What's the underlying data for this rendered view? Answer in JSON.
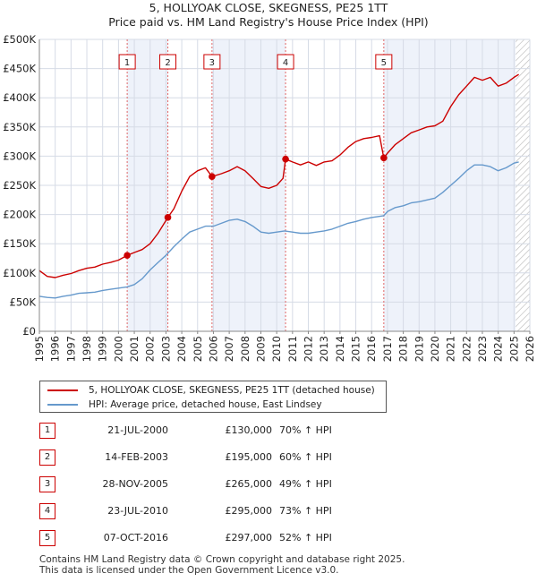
{
  "title": "5, HOLLYOAK CLOSE, SKEGNESS, PE25 1TT",
  "subtitle": "Price paid vs. HM Land Registry's House Price Index (HPI)",
  "legend": {
    "property": "5, HOLLYOAK CLOSE, SKEGNESS, PE25 1TT (detached house)",
    "hpi": "HPI: Average price, detached house, East Lindsey"
  },
  "sales": [
    {
      "num": "1",
      "date": "21-JUL-2000",
      "price": "£130,000",
      "hpi": "70% ↑ HPI"
    },
    {
      "num": "2",
      "date": "14-FEB-2003",
      "price": "£195,000",
      "hpi": "60% ↑ HPI"
    },
    {
      "num": "3",
      "date": "28-NOV-2005",
      "price": "£265,000",
      "hpi": "49% ↑ HPI"
    },
    {
      "num": "4",
      "date": "23-JUL-2010",
      "price": "£295,000",
      "hpi": "73% ↑ HPI"
    },
    {
      "num": "5",
      "date": "07-OCT-2016",
      "price": "£297,000",
      "hpi": "52% ↑ HPI"
    }
  ],
  "footer": {
    "line1": "Contains HM Land Registry data © Crown copyright and database right 2025.",
    "line2": "This data is licensed under the Open Government Licence v3.0."
  },
  "chart_data": {
    "type": "line",
    "xlim": [
      1995,
      2026
    ],
    "ylim": [
      0,
      500000
    ],
    "x_ticks": [
      "1995",
      "1996",
      "1997",
      "1998",
      "1999",
      "2000",
      "2001",
      "2002",
      "2003",
      "2004",
      "2005",
      "2006",
      "2007",
      "2008",
      "2009",
      "2010",
      "2011",
      "2012",
      "2013",
      "2014",
      "2015",
      "2016",
      "2017",
      "2018",
      "2019",
      "2020",
      "2021",
      "2022",
      "2023",
      "2024",
      "2025",
      "2026"
    ],
    "y_ticks": [
      {
        "value": 0,
        "label": "£0"
      },
      {
        "value": 50000,
        "label": "£50K"
      },
      {
        "value": 100000,
        "label": "£100K"
      },
      {
        "value": 150000,
        "label": "£150K"
      },
      {
        "value": 200000,
        "label": "£200K"
      },
      {
        "value": 250000,
        "label": "£250K"
      },
      {
        "value": 300000,
        "label": "£300K"
      },
      {
        "value": 350000,
        "label": "£350K"
      },
      {
        "value": 400000,
        "label": "£400K"
      },
      {
        "value": 450000,
        "label": "£450K"
      },
      {
        "value": 500000,
        "label": "£500K"
      }
    ],
    "sale_points": [
      {
        "label": "1",
        "x": 2000.55,
        "y": 130000
      },
      {
        "label": "2",
        "x": 2003.12,
        "y": 195000
      },
      {
        "label": "3",
        "x": 2005.91,
        "y": 265000
      },
      {
        "label": "4",
        "x": 2010.56,
        "y": 295000
      },
      {
        "label": "5",
        "x": 2016.77,
        "y": 297000
      }
    ],
    "series": [
      {
        "name": "5, HOLLYOAK CLOSE, SKEGNESS, PE25 1TT (detached house)",
        "color": "#cc0000",
        "points": [
          [
            1995.0,
            104000
          ],
          [
            1995.5,
            94000
          ],
          [
            1996.0,
            92000
          ],
          [
            1996.5,
            96000
          ],
          [
            1997.0,
            99000
          ],
          [
            1997.5,
            104000
          ],
          [
            1998.0,
            108000
          ],
          [
            1998.5,
            110000
          ],
          [
            1999.0,
            115000
          ],
          [
            1999.5,
            118000
          ],
          [
            2000.0,
            122000
          ],
          [
            2000.55,
            130000
          ],
          [
            2001.0,
            135000
          ],
          [
            2001.5,
            140000
          ],
          [
            2002.0,
            150000
          ],
          [
            2002.5,
            168000
          ],
          [
            2003.12,
            195000
          ],
          [
            2003.5,
            210000
          ],
          [
            2004.0,
            240000
          ],
          [
            2004.5,
            265000
          ],
          [
            2005.0,
            275000
          ],
          [
            2005.5,
            280000
          ],
          [
            2005.91,
            265000
          ],
          [
            2006.5,
            270000
          ],
          [
            2007.0,
            275000
          ],
          [
            2007.5,
            282000
          ],
          [
            2008.0,
            275000
          ],
          [
            2008.5,
            262000
          ],
          [
            2009.0,
            248000
          ],
          [
            2009.5,
            245000
          ],
          [
            2010.0,
            250000
          ],
          [
            2010.4,
            262000
          ],
          [
            2010.56,
            295000
          ],
          [
            2011.0,
            290000
          ],
          [
            2011.5,
            285000
          ],
          [
            2012.0,
            290000
          ],
          [
            2012.5,
            284000
          ],
          [
            2013.0,
            290000
          ],
          [
            2013.5,
            292000
          ],
          [
            2014.0,
            302000
          ],
          [
            2014.5,
            315000
          ],
          [
            2015.0,
            325000
          ],
          [
            2015.5,
            330000
          ],
          [
            2016.0,
            332000
          ],
          [
            2016.5,
            335000
          ],
          [
            2016.77,
            297000
          ],
          [
            2017.0,
            305000
          ],
          [
            2017.5,
            320000
          ],
          [
            2018.0,
            330000
          ],
          [
            2018.5,
            340000
          ],
          [
            2019.0,
            345000
          ],
          [
            2019.5,
            350000
          ],
          [
            2020.0,
            352000
          ],
          [
            2020.5,
            360000
          ],
          [
            2021.0,
            385000
          ],
          [
            2021.5,
            405000
          ],
          [
            2022.0,
            420000
          ],
          [
            2022.5,
            435000
          ],
          [
            2023.0,
            430000
          ],
          [
            2023.5,
            435000
          ],
          [
            2024.0,
            420000
          ],
          [
            2024.5,
            425000
          ],
          [
            2025.0,
            435000
          ],
          [
            2025.3,
            440000
          ]
        ]
      },
      {
        "name": "HPI: Average price, detached house, East Lindsey",
        "color": "#6699cc",
        "points": [
          [
            1995.0,
            60000
          ],
          [
            1995.5,
            58000
          ],
          [
            1996.0,
            57000
          ],
          [
            1996.5,
            60000
          ],
          [
            1997.0,
            62000
          ],
          [
            1997.5,
            65000
          ],
          [
            1998.0,
            66000
          ],
          [
            1998.5,
            67000
          ],
          [
            1999.0,
            70000
          ],
          [
            1999.5,
            72000
          ],
          [
            2000.0,
            74000
          ],
          [
            2000.55,
            76000
          ],
          [
            2001.0,
            80000
          ],
          [
            2001.5,
            90000
          ],
          [
            2002.0,
            105000
          ],
          [
            2002.5,
            118000
          ],
          [
            2003.0,
            130000
          ],
          [
            2003.5,
            145000
          ],
          [
            2004.0,
            158000
          ],
          [
            2004.5,
            170000
          ],
          [
            2005.0,
            175000
          ],
          [
            2005.5,
            180000
          ],
          [
            2006.0,
            180000
          ],
          [
            2006.5,
            185000
          ],
          [
            2007.0,
            190000
          ],
          [
            2007.5,
            192000
          ],
          [
            2008.0,
            188000
          ],
          [
            2008.5,
            180000
          ],
          [
            2009.0,
            170000
          ],
          [
            2009.5,
            168000
          ],
          [
            2010.0,
            170000
          ],
          [
            2010.5,
            172000
          ],
          [
            2011.0,
            170000
          ],
          [
            2011.5,
            168000
          ],
          [
            2012.0,
            168000
          ],
          [
            2012.5,
            170000
          ],
          [
            2013.0,
            172000
          ],
          [
            2013.5,
            175000
          ],
          [
            2014.0,
            180000
          ],
          [
            2014.5,
            185000
          ],
          [
            2015.0,
            188000
          ],
          [
            2015.5,
            192000
          ],
          [
            2016.0,
            195000
          ],
          [
            2016.77,
            198000
          ],
          [
            2017.0,
            205000
          ],
          [
            2017.5,
            212000
          ],
          [
            2018.0,
            215000
          ],
          [
            2018.5,
            220000
          ],
          [
            2019.0,
            222000
          ],
          [
            2019.5,
            225000
          ],
          [
            2020.0,
            228000
          ],
          [
            2020.5,
            238000
          ],
          [
            2021.0,
            250000
          ],
          [
            2021.5,
            262000
          ],
          [
            2022.0,
            275000
          ],
          [
            2022.5,
            285000
          ],
          [
            2023.0,
            285000
          ],
          [
            2023.5,
            282000
          ],
          [
            2024.0,
            275000
          ],
          [
            2024.5,
            280000
          ],
          [
            2025.0,
            288000
          ],
          [
            2025.3,
            290000
          ]
        ]
      }
    ],
    "shaded_spans": [
      [
        2000.55,
        2003.12
      ],
      [
        2005.91,
        2010.56
      ],
      [
        2016.77,
        2025.3
      ]
    ],
    "hatched_from": 2025.1
  }
}
